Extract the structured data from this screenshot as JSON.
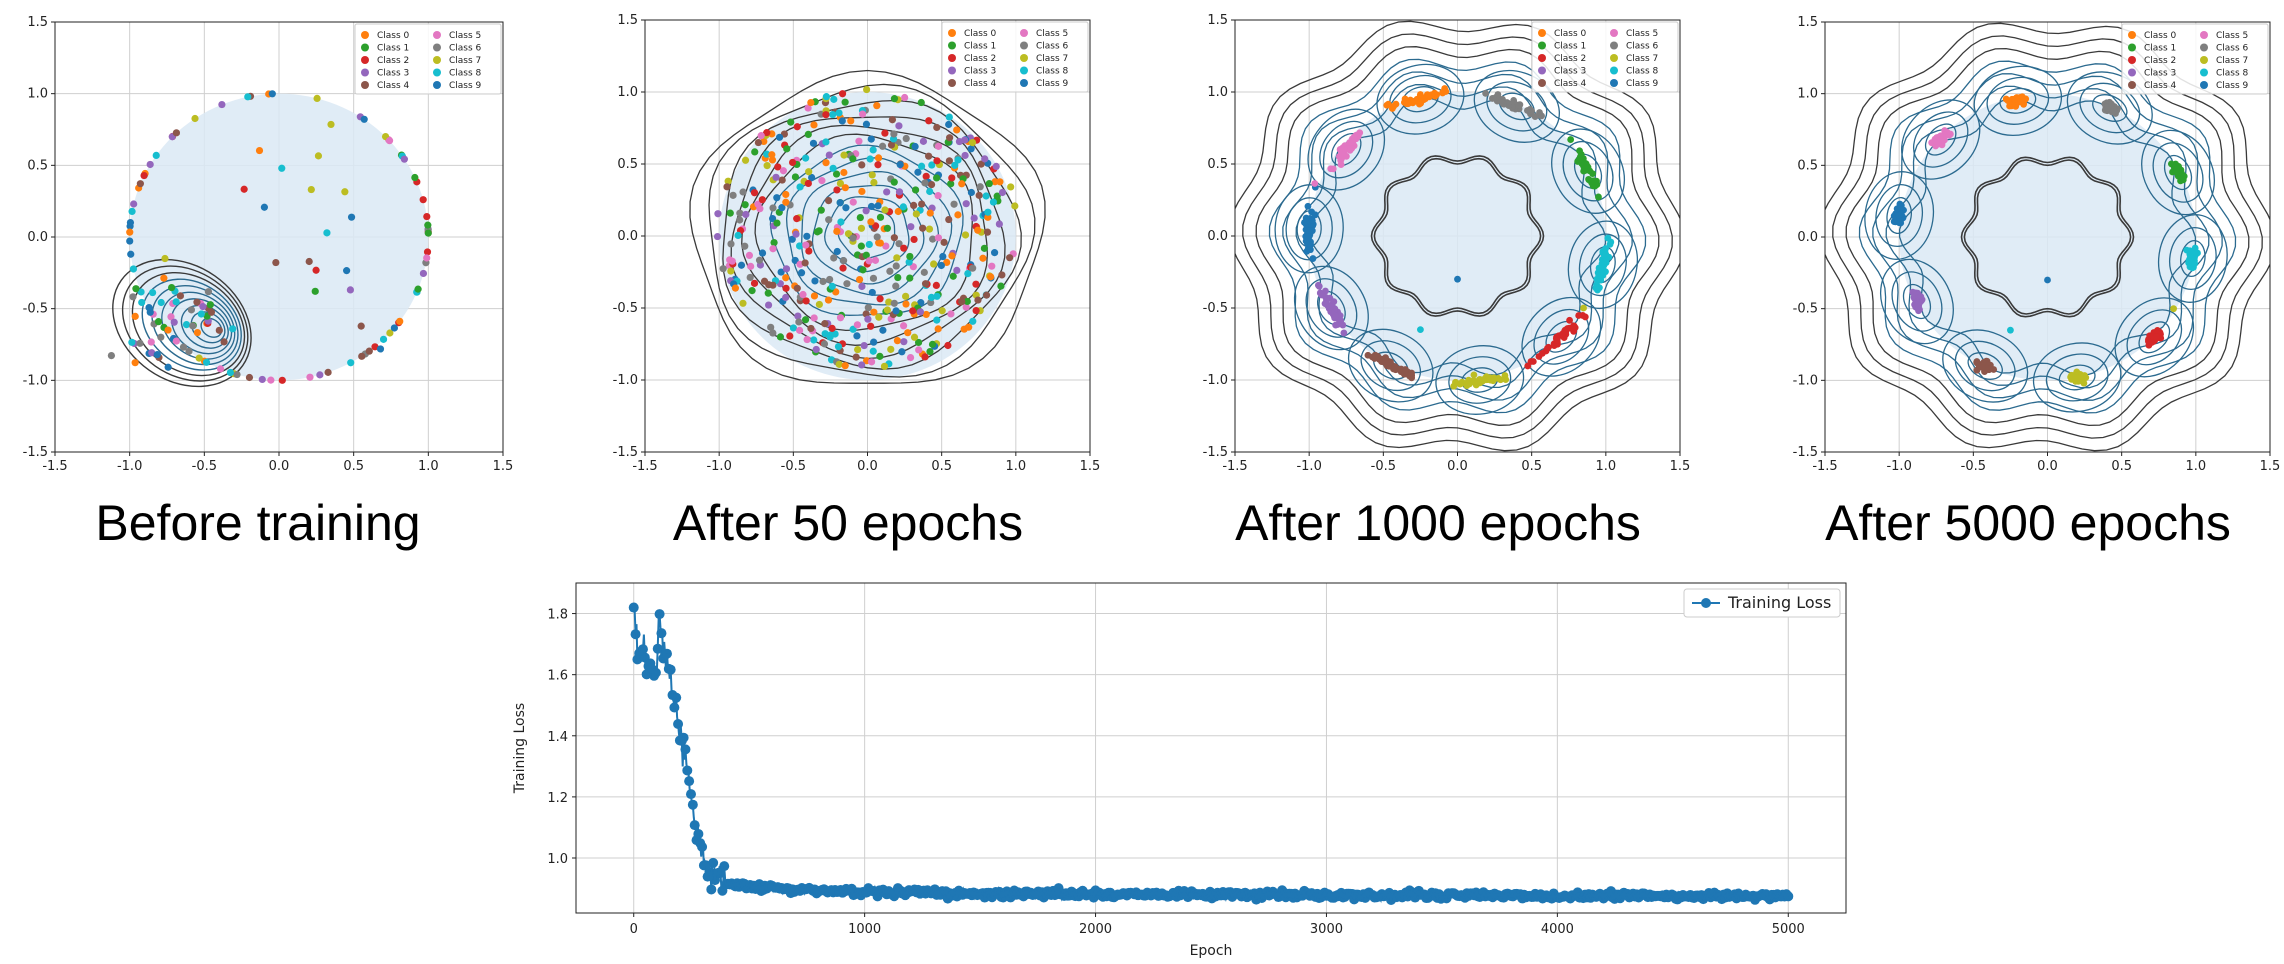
{
  "colors": {
    "class_palette": [
      "#ff7f0e",
      "#2ca02c",
      "#d62728",
      "#9467bd",
      "#8c564b",
      "#e377c2",
      "#7f7f7f",
      "#bcbd22",
      "#17becf",
      "#1f77b4"
    ],
    "disk_fill": "#dbe9f4",
    "contour_dark": "#3a3a3a",
    "contour_blue": "#2b6a8f",
    "loss_line": "#1f77b4",
    "grid": "#cfcfcf"
  },
  "chart_data": [
    {
      "type": "scatter",
      "caption": "Before training",
      "xlim": [
        -1.5,
        1.5
      ],
      "ylim": [
        -1.5,
        1.5
      ],
      "xticks": [
        "-1.5",
        "-1.0",
        "-0.5",
        "0.0",
        "0.5",
        "1.0",
        "1.5"
      ],
      "yticks": [
        "-1.5",
        "-1.0",
        "-0.5",
        "0.0",
        "0.5",
        "1.0",
        "1.5"
      ],
      "grid": true,
      "legend_position": "top-right",
      "legend": [
        "Class 0",
        "Class 1",
        "Class 2",
        "Class 3",
        "Class 4",
        "Class 5",
        "Class 6",
        "Class 7",
        "Class 8",
        "Class 9"
      ],
      "state": "unstructured",
      "density_contours": {
        "center": [
          -0.65,
          -0.6
        ],
        "levels": 10
      }
    },
    {
      "type": "scatter",
      "caption": "After 50 epochs",
      "xlim": [
        -1.5,
        1.5
      ],
      "ylim": [
        -1.5,
        1.5
      ],
      "xticks": [
        "-1.5",
        "-1.0",
        "-0.5",
        "0.0",
        "0.5",
        "1.0",
        "1.5"
      ],
      "yticks": [
        "-1.5",
        "-1.0",
        "-0.5",
        "0.0",
        "0.5",
        "1.0",
        "1.5"
      ],
      "grid": true,
      "legend_position": "top-right",
      "legend": [
        "Class 0",
        "Class 1",
        "Class 2",
        "Class 3",
        "Class 4",
        "Class 5",
        "Class 6",
        "Class 7",
        "Class 8",
        "Class 9"
      ],
      "state": "mixed",
      "density_contours": {
        "center": [
          0.0,
          0.1
        ],
        "levels": 12
      }
    },
    {
      "type": "scatter",
      "caption": "After 1000 epochs",
      "xlim": [
        -1.5,
        1.5
      ],
      "ylim": [
        -1.5,
        1.5
      ],
      "xticks": [
        "-1.5",
        "-1.0",
        "-0.5",
        "0.0",
        "0.5",
        "1.0",
        "1.5"
      ],
      "yticks": [
        "-1.5",
        "-1.0",
        "-0.5",
        "0.0",
        "0.5",
        "1.0",
        "1.5"
      ],
      "grid": true,
      "legend_position": "top-right",
      "legend": [
        "Class 0",
        "Class 1",
        "Class 2",
        "Class 3",
        "Class 4",
        "Class 5",
        "Class 6",
        "Class 7",
        "Class 8",
        "Class 9"
      ],
      "state": "clustered",
      "cluster_centers": [
        {
          "class": 0,
          "x": -0.25,
          "y": 0.95
        },
        {
          "class": 6,
          "x": 0.4,
          "y": 0.9
        },
        {
          "class": 1,
          "x": 0.88,
          "y": 0.45
        },
        {
          "class": 8,
          "x": 0.98,
          "y": -0.2
        },
        {
          "class": 2,
          "x": 0.7,
          "y": -0.7
        },
        {
          "class": 7,
          "x": 0.15,
          "y": -1.0
        },
        {
          "class": 4,
          "x": -0.45,
          "y": -0.9
        },
        {
          "class": 3,
          "x": -0.85,
          "y": -0.5
        },
        {
          "class": 9,
          "x": -1.0,
          "y": 0.05
        },
        {
          "class": 5,
          "x": -0.75,
          "y": 0.6
        }
      ]
    },
    {
      "type": "scatter",
      "caption": "After 5000 epochs",
      "xlim": [
        -1.5,
        1.5
      ],
      "ylim": [
        -1.5,
        1.5
      ],
      "xticks": [
        "-1.5",
        "-1.0",
        "-0.5",
        "0.0",
        "0.5",
        "1.0",
        "1.5"
      ],
      "yticks": [
        "-1.5",
        "-1.0",
        "-0.5",
        "0.0",
        "0.5",
        "1.0",
        "1.5"
      ],
      "grid": true,
      "legend_position": "top-right",
      "legend": [
        "Class 0",
        "Class 1",
        "Class 2",
        "Class 3",
        "Class 4",
        "Class 5",
        "Class 6",
        "Class 7",
        "Class 8",
        "Class 9"
      ],
      "state": "clustered",
      "cluster_centers": [
        {
          "class": 0,
          "x": -0.2,
          "y": 0.95
        },
        {
          "class": 6,
          "x": 0.42,
          "y": 0.9
        },
        {
          "class": 1,
          "x": 0.88,
          "y": 0.45
        },
        {
          "class": 8,
          "x": 0.98,
          "y": -0.15
        },
        {
          "class": 2,
          "x": 0.72,
          "y": -0.7
        },
        {
          "class": 7,
          "x": 0.2,
          "y": -0.98
        },
        {
          "class": 4,
          "x": -0.42,
          "y": -0.9
        },
        {
          "class": 3,
          "x": -0.88,
          "y": -0.45
        },
        {
          "class": 9,
          "x": -1.0,
          "y": 0.15
        },
        {
          "class": 5,
          "x": -0.72,
          "y": 0.68
        }
      ]
    },
    {
      "type": "line",
      "xlabel": "Epoch",
      "ylabel": "Training Loss",
      "legend": [
        "Training Loss"
      ],
      "legend_position": "top-right",
      "grid": true,
      "xlim": [
        -250,
        5250
      ],
      "ylim": [
        0.82,
        1.9
      ],
      "xticks": [
        "0",
        "1000",
        "2000",
        "3000",
        "4000",
        "5000"
      ],
      "yticks": [
        "1.0",
        "1.2",
        "1.4",
        "1.6",
        "1.8"
      ],
      "x": [
        0,
        10,
        20,
        40,
        60,
        80,
        100,
        110,
        120,
        140,
        160,
        180,
        200,
        220,
        240,
        260,
        280,
        300,
        320,
        350,
        380,
        420,
        460,
        500,
        600,
        700,
        800,
        1000,
        1500,
        2000,
        2500,
        3000,
        3500,
        4000,
        4500,
        5000
      ],
      "y": [
        1.85,
        1.75,
        1.68,
        1.65,
        1.63,
        1.6,
        1.58,
        1.86,
        1.7,
        1.64,
        1.58,
        1.5,
        1.42,
        1.35,
        1.25,
        1.15,
        1.06,
        1.0,
        0.97,
        0.94,
        0.925,
        0.915,
        0.91,
        0.905,
        0.9,
        0.895,
        0.892,
        0.888,
        0.884,
        0.882,
        0.88,
        0.879,
        0.878,
        0.877,
        0.876,
        0.875
      ]
    }
  ]
}
